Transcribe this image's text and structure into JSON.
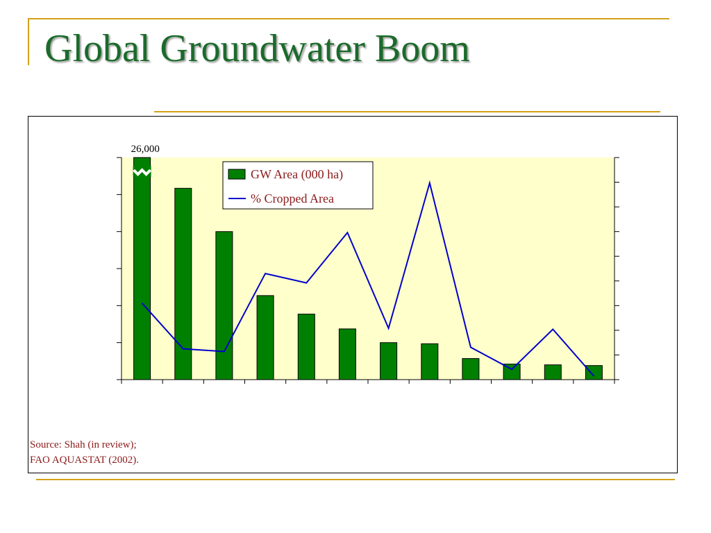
{
  "slide": {
    "title": "Global Groundwater Boom",
    "source_line1": "Source: Shah (in review);",
    "source_line2": "FAO AQUASTAT (2002)."
  },
  "colors": {
    "title": "#1a6b2a",
    "accent_rule": "#d4a017",
    "plot_background": "#ffffcc",
    "bar_fill": "#008000",
    "line": "#0000cc",
    "source_text": "#8b1a1a"
  },
  "chart_data": {
    "type": "bar",
    "title": "",
    "xlabel": "",
    "ylabel": "",
    "categories": [
      "",
      "",
      "",
      "",
      "",
      "",
      "",
      "",
      "",
      "",
      "",
      ""
    ],
    "bar_axis_break": {
      "label": "26,000",
      "bar_index": 0
    },
    "y_left_ticks": 6,
    "y_right_ticks": 9,
    "legend_position": "top-center",
    "grid": false,
    "series": [
      {
        "name": "GW Area (000 ha)",
        "type": "bar",
        "axis": "left",
        "values": [
          6.0,
          5.17,
          4.0,
          2.27,
          1.77,
          1.37,
          1.0,
          0.97,
          0.57,
          0.42,
          0.4,
          0.38
        ]
      },
      {
        "name": "% Cropped Area",
        "type": "line",
        "axis": "right",
        "values": [
          3.1,
          1.25,
          1.14,
          4.3,
          3.92,
          5.96,
          2.08,
          7.97,
          1.31,
          0.42,
          2.04,
          0.14
        ]
      }
    ]
  }
}
